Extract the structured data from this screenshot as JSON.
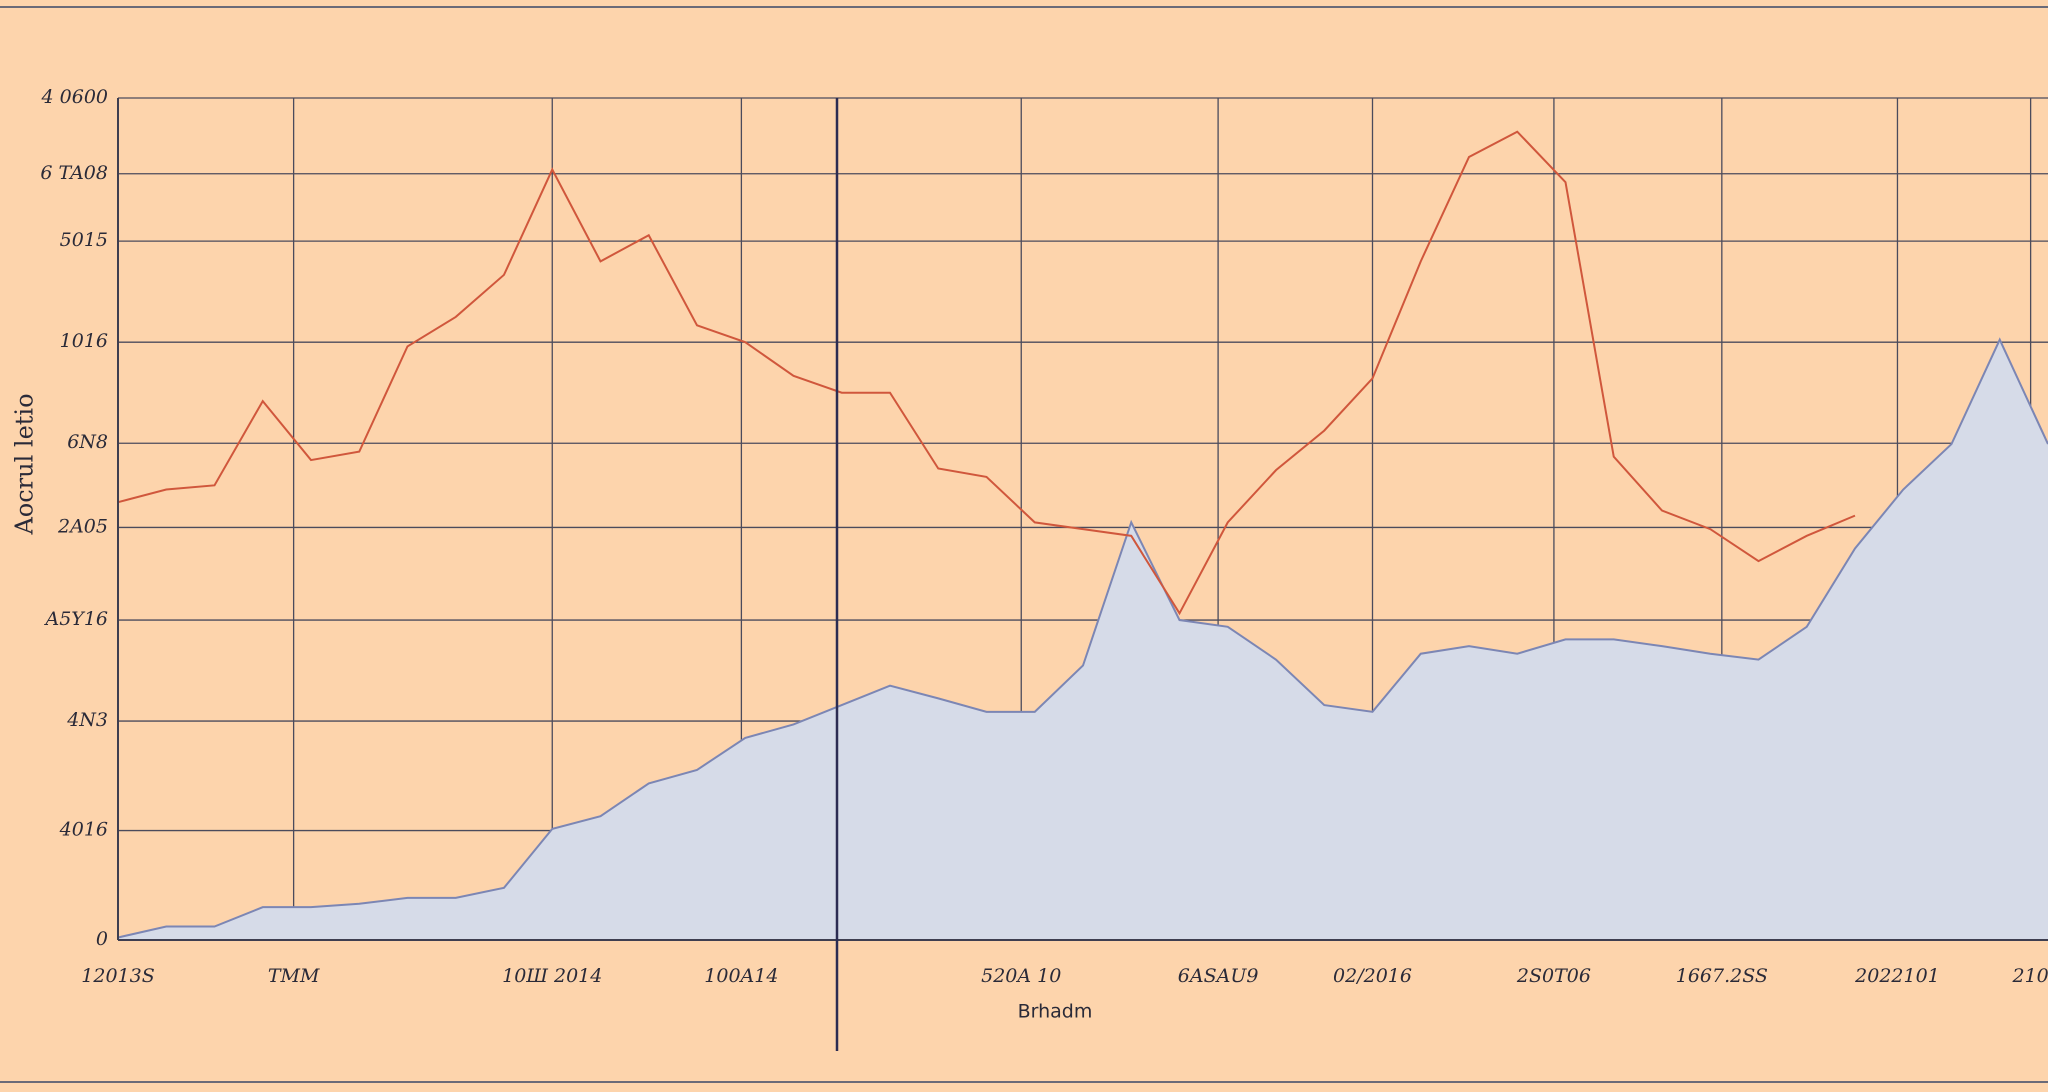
{
  "chart_data": {
    "type": "line",
    "x_label": "Brhadm",
    "y_label": "Aocrul letio",
    "x": [
      0,
      2.5,
      5,
      7.5,
      10,
      12.5,
      15,
      17.5,
      20,
      22.5,
      25,
      27.5,
      30,
      32.5,
      35,
      37.5,
      40,
      42.5,
      45,
      47.5,
      50,
      52.5,
      55,
      57.5,
      60,
      62.5,
      65,
      67.5,
      70,
      72.5,
      75,
      77.5,
      80,
      82.5,
      85,
      87.5,
      90,
      92.5,
      95,
      97.5,
      100
    ],
    "series": [
      {
        "color": "#7c86b4",
        "fill": "#d6dbe8",
        "area": true,
        "values": [
          0.3,
          1.6,
          1.6,
          3.9,
          3.9,
          4.3,
          5,
          5,
          6.2,
          13.2,
          14.7,
          18.6,
          20.2,
          24,
          25.6,
          27.9,
          30.2,
          28.7,
          27.1,
          27.1,
          32.6,
          49.6,
          38,
          37.2,
          33.3,
          27.9,
          27.1,
          34,
          34.9,
          34,
          35.7,
          35.7,
          34.9,
          34,
          33.3,
          37.2,
          46.5,
          53.5,
          58.9,
          71.3,
          58.9
        ]
      },
      {
        "color": "#d0573c",
        "values": [
          52,
          53.5,
          54,
          64,
          57,
          58,
          70.5,
          74,
          79,
          91.5,
          80.6,
          83.7,
          73,
          71,
          67,
          65,
          65,
          56,
          55,
          49.6,
          48.8,
          48,
          38.8,
          49.6,
          55.8,
          60.5,
          66.7,
          80.6,
          93,
          96,
          90,
          57.4,
          51,
          48.8,
          45,
          48,
          50.4,
          null,
          null,
          null,
          null
        ]
      }
    ],
    "xlim": [
      0,
      100
    ],
    "ylim": [
      0,
      100
    ],
    "xticks": [
      {
        "value": 0,
        "label": "12013S"
      },
      {
        "value": 9.1,
        "label": "TMM"
      },
      {
        "value": 22.5,
        "label": "10Ш 2014"
      },
      {
        "value": 32.3,
        "label": "100A14"
      },
      {
        "value": 46.8,
        "label": "520A 10"
      },
      {
        "value": 57,
        "label": "6ASAU9"
      },
      {
        "value": 65,
        "label": "02/2016"
      },
      {
        "value": 74.4,
        "label": "2S0T06"
      },
      {
        "value": 83.1,
        "label": "1667.2SS"
      },
      {
        "value": 92.2,
        "label": "2022101"
      },
      {
        "value": 99.1,
        "label": "210"
      }
    ],
    "yticks": [
      0,
      {
        "value": 13,
        "label": "4016"
      },
      {
        "value": 26,
        "label": "4N3"
      },
      {
        "value": 38,
        "label": "A5Y16"
      },
      {
        "value": 49,
        "label": "2A05"
      },
      {
        "value": 59,
        "label": "6N8"
      },
      {
        "value": 71,
        "label": "1016"
      },
      {
        "value": 83,
        "label": "5015"
      },
      {
        "value": 91,
        "label": "6 TA08"
      },
      {
        "value": 100,
        "label": "4 0600"
      }
    ],
    "grid": true
  }
}
